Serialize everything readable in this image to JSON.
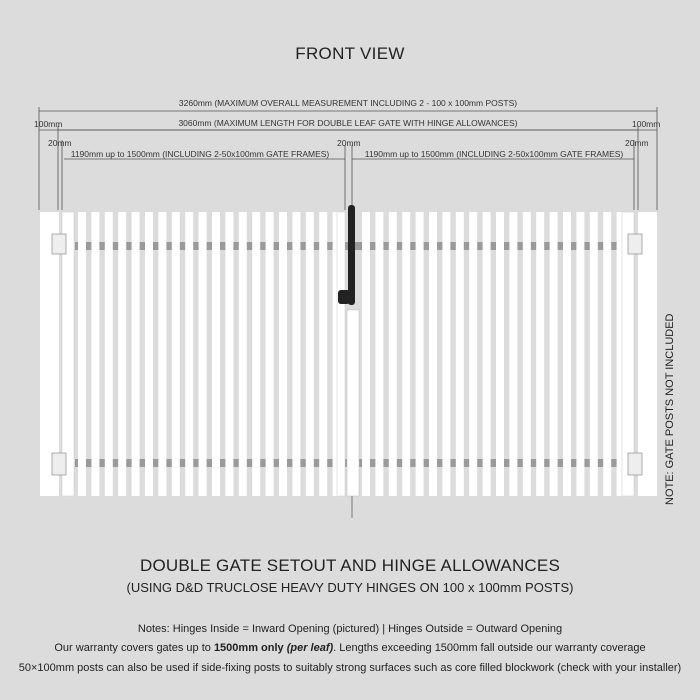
{
  "title": "FRONT VIEW",
  "dimensions": {
    "overall": "3260mm (MAXIMUM OVERALL MEASUREMENT INCLUDING 2 - 100 x 100mm POSTS)",
    "gate_length": "3060mm (MAXIMUM LENGTH FOR DOUBLE LEAF GATE WITH HINGE ALLOWANCES)",
    "post_left": "100mm",
    "post_right": "100mm",
    "gap_left": "20mm",
    "gap_mid": "20mm",
    "gap_right": "20mm",
    "leaf_left": "1190mm up to 1500mm (INCLUDING 2-50x100mm GATE FRAMES)",
    "leaf_right": "1190mm up to 1500mm (INCLUDING 2-50x100mm GATE FRAMES)"
  },
  "side_note": "NOTE: GATE POSTS NOT INCLUDED",
  "heading": "DOUBLE GATE SETOUT AND HINGE ALLOWANCES",
  "subheading": "(USING D&D TRUCLOSE HEAVY DUTY HINGES ON 100 x 100mm POSTS)",
  "notes": {
    "line1": "Notes: Hinges Inside = Inward Opening (pictured) | Hinges Outside = Outward Opening",
    "line2_pre": "Our warranty covers gates up to ",
    "line2_bold": "1500mm only ",
    "line2_bolditalic": "(per leaf)",
    "line2_post": ". Lengths exceeding 1500mm fall outside our warranty coverage",
    "line3": "50×100mm posts can also be used if side-fixing posts to suitably strong surfaces such as core filled blockwork (check with your installer)"
  },
  "colors": {
    "background": "#dcdcdc",
    "gate": "#ffffff",
    "rail": "#9a9a9a",
    "latch": "#222222"
  }
}
